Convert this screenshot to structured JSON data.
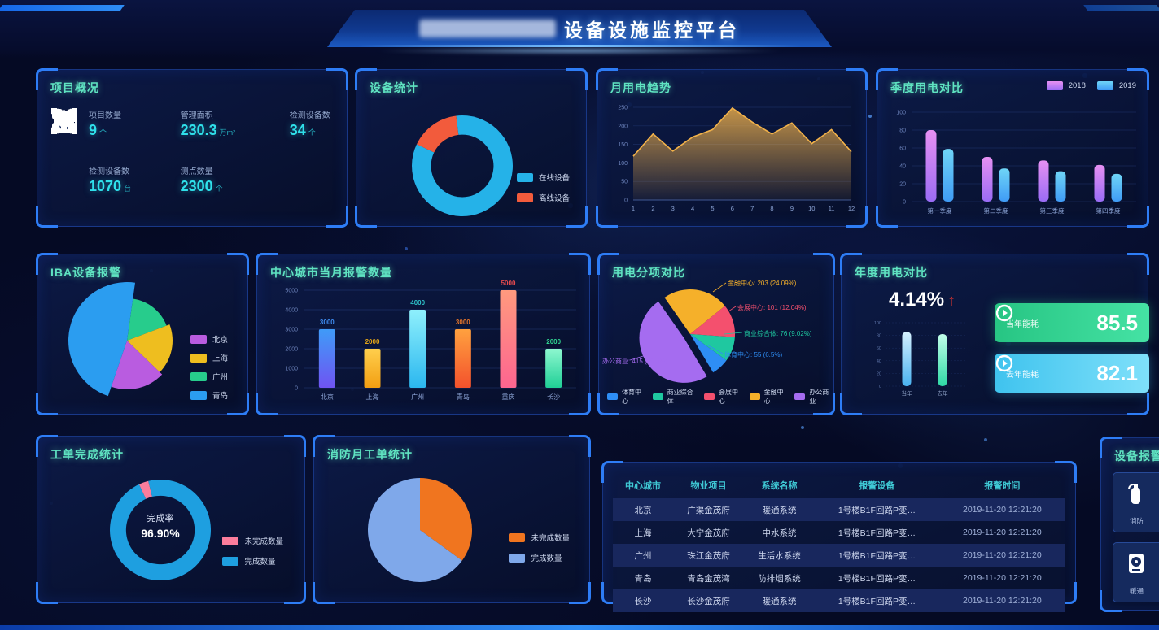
{
  "header": {
    "title": "设备设施监控平台"
  },
  "panels": {
    "project": {
      "title": "项目概况",
      "stats": [
        {
          "icon": "grid-icon",
          "label": "项目数量",
          "value": "9",
          "unit": "个"
        },
        {
          "icon": "area-icon",
          "label": "管理面积",
          "value": "230.3",
          "unit": "万m²"
        },
        {
          "icon": "house-icon",
          "label": "检测设备数",
          "value": "34",
          "unit": "个"
        },
        {
          "icon": "battery-icon",
          "label": "检测设备数",
          "value": "1070",
          "unit": "台"
        },
        {
          "icon": "target-icon",
          "label": "测点数量",
          "value": "2300",
          "unit": "个"
        }
      ]
    },
    "device": {
      "title": "设备统计"
    },
    "monthly": {
      "title": "月用电趋势"
    },
    "quarterly": {
      "title": "季度用电对比"
    },
    "iba": {
      "title": "IBA设备报警"
    },
    "city": {
      "title": "中心城市当月报警数量"
    },
    "breakdown": {
      "title": "用电分项对比"
    },
    "annual": {
      "title": "年度用电对比",
      "growth": "4.14%",
      "arrow": "↑",
      "cards": [
        {
          "label": "当年能耗",
          "value": "85.5"
        },
        {
          "label": "去年能耗",
          "value": "82.1"
        }
      ]
    },
    "workorder": {
      "title": "工单完成统计",
      "center_label": "完成率",
      "center_value": "96.90%"
    },
    "fire": {
      "title": "消防月工单统计"
    },
    "alarm_status": {
      "title": "设备报警状态",
      "items": [
        {
          "icon": "extinguisher-icon",
          "label": "消防"
        },
        {
          "icon": "hvac-icon",
          "label": "暖通"
        }
      ]
    }
  },
  "table": {
    "headers": [
      "中心城市",
      "物业项目",
      "系统名称",
      "报警设备",
      "报警时间"
    ],
    "rows": [
      [
        "北京",
        "广渠金茂府",
        "暖通系统",
        "1号楼B1F回路P变…",
        "2019-11-20 12:21:20"
      ],
      [
        "上海",
        "大宁金茂府",
        "中水系统",
        "1号楼B1F回路P变…",
        "2019-11-20 12:21:20"
      ],
      [
        "广州",
        "珠江金茂府",
        "生活水系统",
        "1号楼B1F回路P变…",
        "2019-11-20 12:21:20"
      ],
      [
        "青岛",
        "青岛金茂湾",
        "防排烟系统",
        "1号楼B1F回路P变…",
        "2019-11-20 12:21:20"
      ],
      [
        "长沙",
        "长沙金茂府",
        "暖通系统",
        "1号楼B1F回路P变…",
        "2019-11-20 12:21:20"
      ]
    ]
  },
  "chart_data": [
    {
      "id": "device_donut",
      "type": "pie",
      "title": "设备统计",
      "donut": 0.62,
      "start": -7,
      "slices": [
        {
          "label": "在线设备",
          "value": 84,
          "color": "#25b2e8"
        },
        {
          "label": "离线设备",
          "value": 16,
          "color": "#f25b3c"
        }
      ]
    },
    {
      "id": "monthly_area",
      "type": "area",
      "title": "月用电趋势",
      "x": [
        "1",
        "2",
        "3",
        "4",
        "5",
        "6",
        "7",
        "8",
        "9",
        "10",
        "11",
        "12"
      ],
      "values": [
        118,
        178,
        132,
        170,
        190,
        248,
        210,
        178,
        208,
        152,
        190,
        130
      ],
      "ylim": [
        0,
        250
      ],
      "yticks": [
        0,
        50,
        100,
        150,
        200,
        250
      ],
      "color": "#f2b24a",
      "grid": true
    },
    {
      "id": "quarterly_bars",
      "type": "bar",
      "title": "季度用电对比",
      "categories": [
        "第一季度",
        "第二季度",
        "第三季度",
        "第四季度"
      ],
      "series": [
        {
          "name": "2018",
          "values": [
            80,
            50,
            46,
            41
          ],
          "color": [
            "#e690f2",
            "#9a6cf5"
          ]
        },
        {
          "name": "2019",
          "values": [
            59,
            37,
            34,
            31
          ],
          "color": [
            "#6fd5f7",
            "#3f9bf5"
          ]
        }
      ],
      "ylim": [
        0,
        100
      ],
      "yticks": [
        0,
        20,
        40,
        60,
        80,
        100
      ],
      "legend_position": "top-right"
    },
    {
      "id": "iba_rose",
      "type": "pie",
      "title": "IBA设备报警",
      "start": 8,
      "rose": true,
      "slices": [
        {
          "label": "广州",
          "value": 17,
          "r": 52,
          "color": "#27cc8c"
        },
        {
          "label": "上海",
          "value": 18,
          "r": 56,
          "color": "#eebe1f"
        },
        {
          "label": "北京",
          "value": 18,
          "r": 60,
          "color": "#b95ce0"
        },
        {
          "label": "青岛",
          "value": 47,
          "r": 72,
          "color": "#2b9df0"
        }
      ],
      "legend": [
        {
          "label": "北京",
          "color": "#b95ce0"
        },
        {
          "label": "上海",
          "color": "#eebe1f"
        },
        {
          "label": "广州",
          "color": "#27cc8c"
        },
        {
          "label": "青岛",
          "color": "#2b9df0"
        }
      ]
    },
    {
      "id": "city_bars",
      "type": "bar",
      "title": "中心城市当月报警数量",
      "categories": [
        "北京",
        "上海",
        "广州",
        "青岛",
        "重庆",
        "长沙"
      ],
      "values": [
        3000,
        2000,
        4000,
        3000,
        5000,
        2000
      ],
      "colors": [
        [
          "#3f9bf8",
          "#6f54f2"
        ],
        [
          "#ffcf4d",
          "#f29e12"
        ],
        [
          "#8ff0fc",
          "#2bb7ef"
        ],
        [
          "#ffa13f",
          "#f3512c"
        ],
        [
          "#ff9a7e",
          "#fd6590"
        ],
        [
          "#8df7cf",
          "#1fcf96"
        ]
      ],
      "label_colors": [
        "#3f8df2",
        "#e2a418",
        "#2ec2c9",
        "#e8762a",
        "#e84a4e",
        "#2fd390"
      ],
      "ylim": [
        0,
        5000
      ],
      "yticks": [
        0,
        1000,
        2000,
        3000,
        4000,
        5000
      ],
      "show_labels": true
    },
    {
      "id": "breakdown_pie",
      "type": "pie",
      "title": "用电分项对比",
      "start": -35,
      "slices": [
        {
          "label": "金融中心",
          "value": 24.09,
          "color": "#f5b02a",
          "callout": "金融中心: 203 (24.09%)"
        },
        {
          "label": "会展中心",
          "value": 12.04,
          "color": "#f4506e",
          "callout": "会展中心: 101 (12.04%)"
        },
        {
          "label": "商业综合体",
          "value": 9.02,
          "color": "#1fc8a0",
          "callout": "商业综合体: 76 (9.02%)"
        },
        {
          "label": "体育中心",
          "value": 6.5,
          "color": "#2e8ef5",
          "callout": "体育中心: 55 (6.5%)"
        },
        {
          "label": "办公商业",
          "value": 49.3,
          "color": "#a56cf0",
          "callout": "办公商业: 415 (49.3%)",
          "explode": 9
        }
      ],
      "legend": [
        {
          "label": "体育中心",
          "color": "#2e8ef5"
        },
        {
          "label": "商业综合体",
          "color": "#1fc8a0"
        },
        {
          "label": "会展中心",
          "color": "#f4506e"
        },
        {
          "label": "金融中心",
          "color": "#f5b02a"
        },
        {
          "label": "办公商业",
          "color": "#a56cf0"
        }
      ]
    },
    {
      "id": "annual_bars",
      "type": "bar",
      "title": "年度用电对比",
      "categories": [
        "当年",
        "去年"
      ],
      "values": [
        85.5,
        82.1
      ],
      "colors": [
        [
          "#d6f1ff",
          "#49b2f0"
        ],
        [
          "#c2ffe9",
          "#2ed9a5"
        ]
      ],
      "ylim": [
        0,
        100
      ],
      "yticks": [
        0,
        20,
        40,
        60,
        80,
        100
      ],
      "show_labels": false
    },
    {
      "id": "workorder_donut",
      "type": "pie",
      "title": "工单完成统计",
      "donut": 0.68,
      "start": -25,
      "center_label": "完成率",
      "center_value": "96.90%",
      "slices": [
        {
          "label": "未完成数量",
          "value": 3.1,
          "color": "#fb7d9c"
        },
        {
          "label": "完成数量",
          "value": 96.9,
          "color": "#1e9fe0"
        }
      ]
    },
    {
      "id": "fire_pie",
      "type": "pie",
      "title": "消防月工单统计",
      "start": 0,
      "slices": [
        {
          "label": "未完成数量",
          "value": 35,
          "color": "#f0751f"
        },
        {
          "label": "完成数量",
          "value": 65,
          "color": "#7fa8ea"
        }
      ]
    }
  ]
}
